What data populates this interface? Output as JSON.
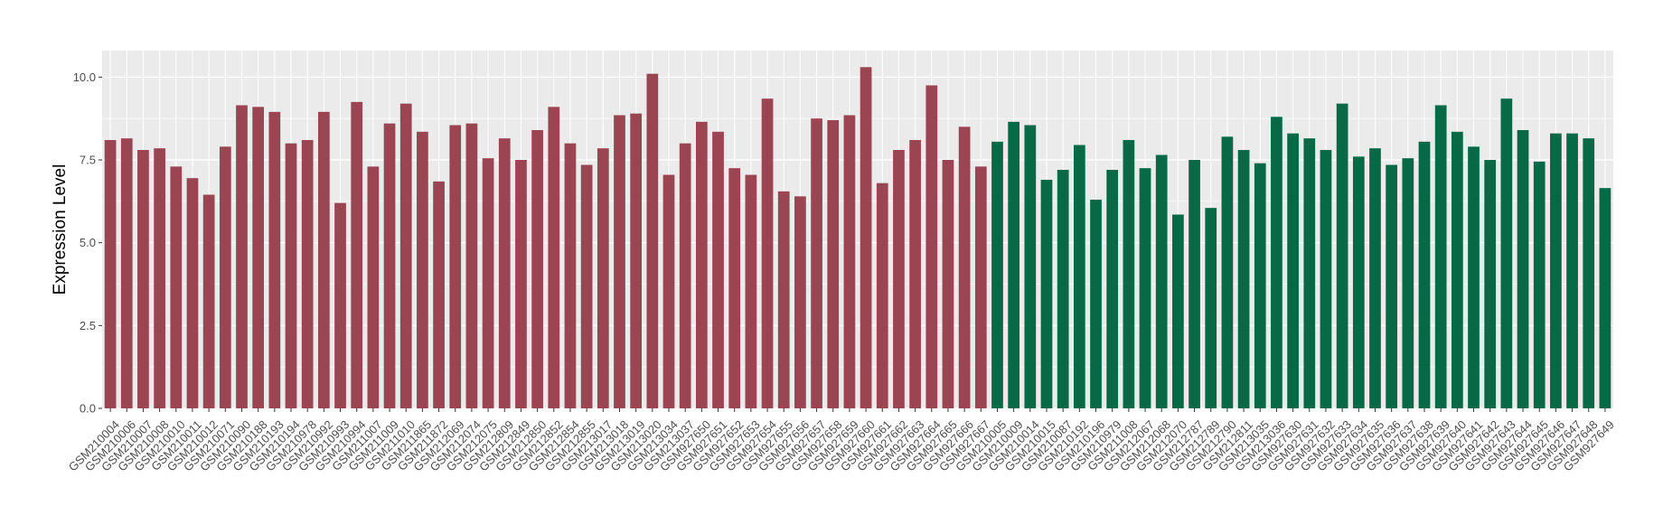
{
  "chart_data": {
    "type": "bar",
    "xlabel": "",
    "ylabel": "Expression Level",
    "ylim": [
      0,
      10.8
    ],
    "yticks": [
      "0.0",
      "2.5",
      "5.0",
      "7.5",
      "10.0"
    ],
    "ytick_values": [
      0,
      2.5,
      5.0,
      7.5,
      10.0
    ],
    "grid": true,
    "legend": "none",
    "colors": {
      "group1": "#9b4452",
      "group2": "#076945",
      "panel": "#ebebeb",
      "grid": "#ffffff"
    },
    "categories": [
      "GSM210004",
      "GSM210006",
      "GSM210007",
      "GSM210008",
      "GSM210010",
      "GSM210011",
      "GSM210012",
      "GSM210071",
      "GSM210090",
      "GSM210188",
      "GSM210193",
      "GSM210194",
      "GSM210978",
      "GSM210992",
      "GSM210993",
      "GSM210994",
      "GSM211007",
      "GSM211009",
      "GSM211010",
      "GSM211865",
      "GSM211872",
      "GSM212069",
      "GSM212074",
      "GSM212075",
      "GSM212809",
      "GSM212849",
      "GSM212850",
      "GSM212852",
      "GSM212854",
      "GSM212855",
      "GSM213017",
      "GSM213018",
      "GSM213019",
      "GSM213020",
      "GSM213034",
      "GSM213037",
      "GSM927650",
      "GSM927651",
      "GSM927652",
      "GSM927653",
      "GSM927654",
      "GSM927655",
      "GSM927656",
      "GSM927657",
      "GSM927658",
      "GSM927659",
      "GSM927660",
      "GSM927661",
      "GSM927662",
      "GSM927663",
      "GSM927664",
      "GSM927665",
      "GSM927666",
      "GSM927667",
      "GSM210005",
      "GSM210009",
      "GSM210014",
      "GSM210015",
      "GSM210087",
      "GSM210192",
      "GSM210196",
      "GSM210979",
      "GSM211008",
      "GSM212067",
      "GSM212068",
      "GSM212070",
      "GSM212787",
      "GSM212789",
      "GSM212790",
      "GSM212811",
      "GSM213035",
      "GSM213036",
      "GSM927630",
      "GSM927631",
      "GSM927632",
      "GSM927633",
      "GSM927634",
      "GSM927635",
      "GSM927636",
      "GSM927637",
      "GSM927638",
      "GSM927639",
      "GSM927640",
      "GSM927641",
      "GSM927642",
      "GSM927643",
      "GSM927644",
      "GSM927645",
      "GSM927646",
      "GSM927647",
      "GSM927648",
      "GSM927649"
    ],
    "values": [
      8.1,
      8.15,
      7.8,
      7.85,
      7.3,
      6.95,
      6.45,
      7.9,
      9.15,
      9.1,
      8.95,
      8.0,
      8.1,
      8.95,
      6.2,
      9.25,
      7.3,
      8.6,
      9.2,
      8.35,
      6.85,
      8.55,
      8.6,
      7.55,
      8.15,
      7.5,
      8.4,
      9.1,
      8.0,
      7.35,
      7.85,
      8.85,
      8.9,
      10.1,
      7.05,
      8.0,
      8.65,
      8.35,
      7.25,
      7.05,
      9.35,
      6.55,
      6.4,
      8.75,
      8.7,
      8.85,
      10.3,
      6.8,
      7.8,
      8.1,
      9.75,
      7.5,
      8.5,
      7.3,
      8.05,
      8.65,
      8.55,
      6.9,
      7.2,
      7.95,
      6.3,
      7.2,
      8.1,
      7.25,
      7.65,
      5.85,
      7.5,
      6.05,
      8.2,
      7.8,
      7.4,
      8.8,
      8.3,
      8.15,
      7.8,
      9.2,
      7.6,
      7.85,
      7.35,
      7.55,
      8.05,
      9.15,
      8.35,
      7.9,
      7.5,
      9.35,
      8.4,
      7.45,
      8.3,
      8.3,
      8.15,
      6.65
    ],
    "group1_count": 54
  }
}
